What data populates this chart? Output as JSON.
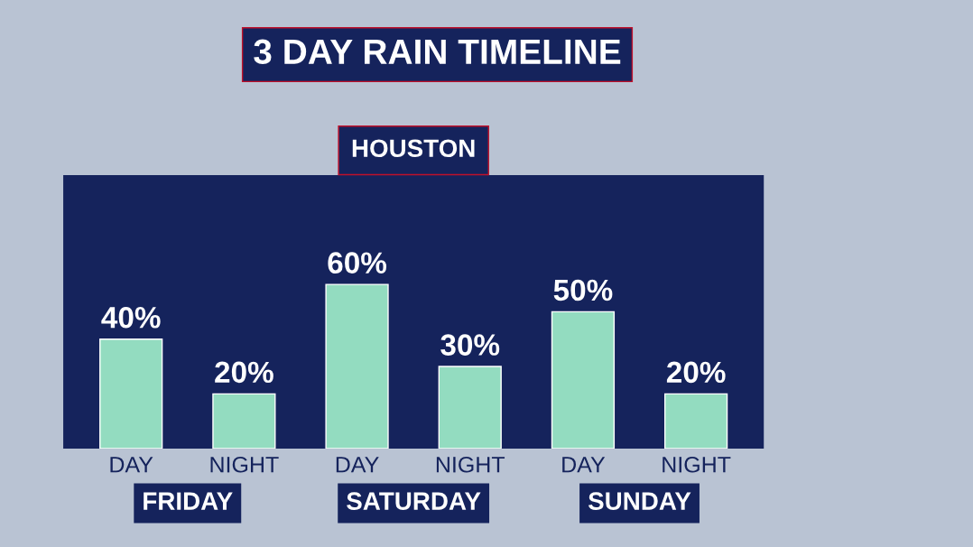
{
  "chart_data": {
    "type": "bar",
    "title": "3 DAY RAIN TIMELINE",
    "subtitle": "HOUSTON",
    "categories": [
      "DAY",
      "NIGHT",
      "DAY",
      "NIGHT",
      "DAY",
      "NIGHT"
    ],
    "values": [
      40,
      20,
      60,
      30,
      50,
      20
    ],
    "value_labels": [
      "40%",
      "20%",
      "60%",
      "30%",
      "50%",
      "20%"
    ],
    "color": "#93dcc0",
    "ylim": [
      0,
      100
    ],
    "tick_labels": "x",
    "grid": false,
    "legend": false,
    "annotations": [
      "FRIDAY",
      "SATURDAY",
      "SUNDAY"
    ]
  }
}
